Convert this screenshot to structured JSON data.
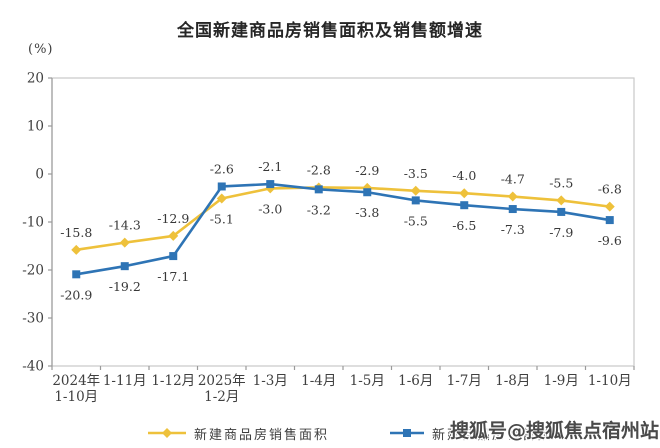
{
  "header": {
    "title": "全国新建商品房销售面积及销售额增速"
  },
  "watermark": {
    "text": "搜狐号@搜狐焦点宿州站"
  },
  "chart_data": {
    "type": "line",
    "title": "全国新建商品房销售面积及销售额增速",
    "unit_label": "(%)",
    "ylim": [
      -40,
      20
    ],
    "yticks": [
      20,
      10,
      0,
      -10,
      -20,
      -30,
      -40
    ],
    "grid": false,
    "legend_position": "bottom",
    "categories": [
      "2024年\n1-10月",
      "1-11月",
      "1-12月",
      "2025年\n1-2月",
      "1-3月",
      "1-4月",
      "1-5月",
      "1-6月",
      "1-7月",
      "1-8月",
      "1-9月",
      "1-10月"
    ],
    "series": [
      {
        "name": "新建商品房销售面积",
        "color": "#EEC13B",
        "marker": "diamond",
        "label_default": "above",
        "label_flipped_indices": [
          3,
          4
        ],
        "values": [
          -15.8,
          -14.3,
          -12.9,
          -5.1,
          -3.0,
          -2.8,
          -2.9,
          -3.5,
          -4.0,
          -4.7,
          -5.5,
          -6.8
        ]
      },
      {
        "name": "新建商品房销售额",
        "color": "#2E74B5",
        "marker": "square",
        "label_default": "below",
        "label_flipped_indices": [
          3,
          4
        ],
        "values": [
          -20.9,
          -19.2,
          -17.1,
          -2.6,
          -2.1,
          -3.2,
          -3.8,
          -5.5,
          -6.5,
          -7.3,
          -7.9,
          -9.6
        ]
      }
    ],
    "colors": {
      "axis": "#9a9a9a",
      "plot_border": "#c9c9c9",
      "tick_label": "#404040",
      "data_label": "#383838"
    }
  }
}
